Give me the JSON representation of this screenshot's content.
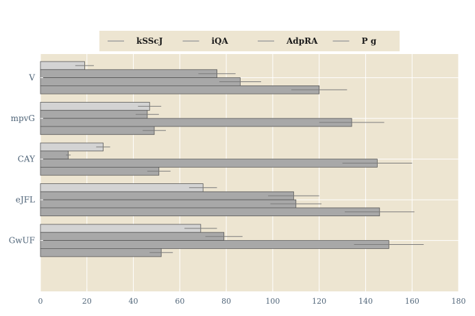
{
  "chart_data": {
    "type": "bar",
    "orientation": "horizontal",
    "categories": [
      "V",
      "mpvG",
      "CAY",
      "eJFL",
      "GwUF"
    ],
    "series": [
      {
        "name": "kSScJ",
        "values": [
          19,
          47,
          27,
          70,
          69
        ],
        "errors": [
          4,
          5,
          3,
          6,
          7
        ],
        "color": "#d3d3d3"
      },
      {
        "name": "iQA",
        "values": [
          76,
          46,
          12,
          109,
          79
        ],
        "errors": [
          8,
          5,
          1,
          11,
          8
        ],
        "color": "#a8a8a8"
      },
      {
        "name": "AdpRA",
        "values": [
          86,
          134,
          145,
          110,
          150
        ],
        "errors": [
          9,
          14,
          15,
          11,
          15
        ],
        "color": "#a8a8a8"
      },
      {
        "name": "P g",
        "values": [
          120,
          49,
          51,
          146,
          52
        ],
        "errors": [
          12,
          5,
          5,
          15,
          5
        ],
        "color": "#a8a8a8"
      }
    ],
    "xlim": [
      0,
      180
    ],
    "xticks": [
      0,
      20,
      40,
      60,
      80,
      100,
      120,
      140,
      160,
      180
    ],
    "xlabel": "",
    "ylabel": "",
    "title": "",
    "grid": true,
    "legend_position": "top-center",
    "background_color": "#ede5d1",
    "grid_color": "#ffffff"
  }
}
